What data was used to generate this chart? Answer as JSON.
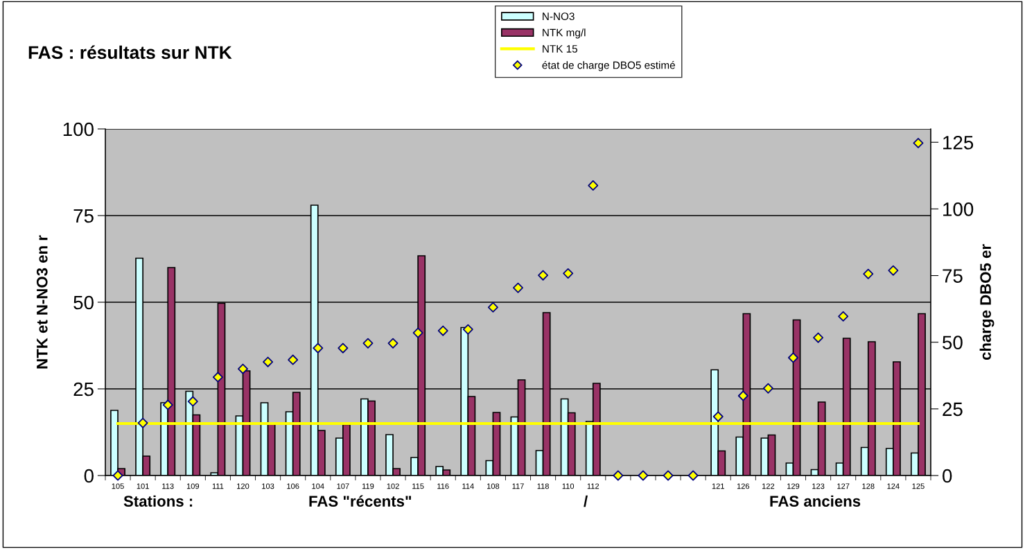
{
  "chart_data": {
    "type": "bar",
    "title": "FAS : résultats sur NTK",
    "ylabel": "NTK et N-NO3 en r",
    "y2label": "charge DBO5 er",
    "categories": [
      "105",
      "101",
      "113",
      "109",
      "111",
      "120",
      "103",
      "106",
      "104",
      "107",
      "119",
      "102",
      "115",
      "116",
      "114",
      "108",
      "117",
      "118",
      "110",
      "112",
      null,
      null,
      null,
      null,
      "121",
      "126",
      "122",
      "129",
      "123",
      "127",
      "128",
      "124",
      "125"
    ],
    "series": [
      {
        "name": "N-NO3",
        "color": "#ccffff",
        "values": [
          18.8,
          62.7,
          21,
          24.3,
          0.8,
          17.2,
          21,
          18.4,
          78,
          10.8,
          22.1,
          11.8,
          5.2,
          2.6,
          42.7,
          4.3,
          16.9,
          7.2,
          22.1,
          15.6,
          null,
          null,
          null,
          null,
          30.5,
          11.1,
          10.8,
          3.6,
          1.7,
          3.6,
          8.1,
          7.8,
          6.5
        ]
      },
      {
        "name": "NTK mg/l",
        "color": "#993366",
        "values": [
          2,
          5.6,
          60,
          17.5,
          49.7,
          30.2,
          14.8,
          24,
          13,
          14.7,
          21.5,
          2,
          63.4,
          1.6,
          22.8,
          18.2,
          27.6,
          47,
          18.1,
          26.6,
          null,
          null,
          null,
          null,
          7.1,
          46.7,
          11.7,
          44.9,
          21.2,
          39.6,
          38.6,
          32.8,
          46.7
        ]
      },
      {
        "name": "NTK 15",
        "type": "line",
        "color": "#ffff00",
        "values": [
          15,
          15,
          15,
          15,
          15,
          15,
          15,
          15,
          15,
          15,
          15,
          15,
          15,
          15,
          15,
          15,
          15,
          15,
          15,
          15,
          15,
          15,
          15,
          15,
          15,
          15,
          15,
          15,
          15,
          15,
          15,
          15,
          15
        ]
      },
      {
        "name": "état de charge DBO5 estimé",
        "type": "scatter",
        "axis": "y2",
        "color": "#ffff00",
        "marker": "diamond",
        "values": [
          0,
          19.7,
          26.5,
          27.8,
          36.9,
          40,
          42.6,
          43.4,
          47.8,
          47.8,
          49.6,
          49.6,
          53.5,
          54.3,
          54.8,
          63.1,
          70.4,
          75.1,
          75.8,
          108.8,
          0,
          0,
          0,
          0,
          22.1,
          29.9,
          32.7,
          44.2,
          51.7,
          59.7,
          75.6,
          76.9,
          124.7
        ]
      }
    ],
    "ylim": [
      0,
      100
    ],
    "yticks": [
      0,
      25,
      50,
      75,
      100
    ],
    "y2lim": [
      0,
      130
    ],
    "y2ticks": [
      0,
      25,
      50,
      75,
      100,
      125
    ],
    "grid": "y",
    "legend": "top",
    "annotations": [
      "Stations :",
      "FAS \"récents\"",
      "/",
      "FAS anciens"
    ]
  }
}
